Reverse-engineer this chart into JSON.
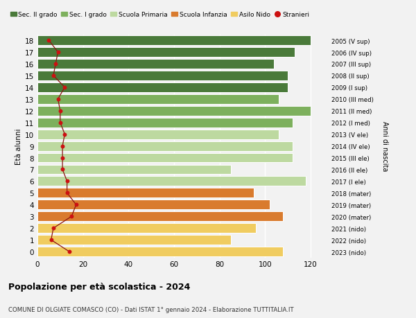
{
  "ages": [
    18,
    17,
    16,
    15,
    14,
    13,
    12,
    11,
    10,
    9,
    8,
    7,
    6,
    5,
    4,
    3,
    2,
    1,
    0
  ],
  "bar_values": [
    120,
    113,
    104,
    110,
    110,
    106,
    120,
    112,
    106,
    112,
    112,
    85,
    118,
    95,
    102,
    108,
    96,
    85,
    108
  ],
  "right_labels": [
    "2005 (V sup)",
    "2006 (IV sup)",
    "2007 (III sup)",
    "2008 (II sup)",
    "2009 (I sup)",
    "2010 (III med)",
    "2011 (II med)",
    "2012 (I med)",
    "2013 (V ele)",
    "2014 (IV ele)",
    "2015 (III ele)",
    "2016 (II ele)",
    "2017 (I ele)",
    "2018 (mater)",
    "2019 (mater)",
    "2020 (mater)",
    "2021 (nido)",
    "2022 (nido)",
    "2023 (nido)"
  ],
  "bar_colors": [
    "#4a7a3a",
    "#4a7a3a",
    "#4a7a3a",
    "#4a7a3a",
    "#4a7a3a",
    "#7db05d",
    "#7db05d",
    "#7db05d",
    "#bdd9a0",
    "#bdd9a0",
    "#bdd9a0",
    "#bdd9a0",
    "#bdd9a0",
    "#d97b2e",
    "#d97b2e",
    "#d97b2e",
    "#f0cc60",
    "#f0cc60",
    "#f0cc60"
  ],
  "stranieri_values": [
    5,
    9,
    8,
    7,
    12,
    9,
    10,
    10,
    12,
    11,
    11,
    11,
    13,
    13,
    17,
    15,
    7,
    6,
    14
  ],
  "legend_labels": [
    "Sec. II grado",
    "Sec. I grado",
    "Scuola Primaria",
    "Scuola Infanzia",
    "Asilo Nido",
    "Stranieri"
  ],
  "legend_colors": [
    "#4a7a3a",
    "#7db05d",
    "#bdd9a0",
    "#d97b2e",
    "#f0cc60",
    "#cc1111"
  ],
  "ylabel": "Età alunni",
  "right_ylabel": "Anni di nascita",
  "title": "Popolazione per età scolastica - 2024",
  "subtitle": "COMUNE DI OLGIATE COMASCO (CO) - Dati ISTAT 1° gennaio 2024 - Elaborazione TUTTITALIA.IT",
  "xlim": [
    0,
    128
  ],
  "background_color": "#f2f2f2"
}
